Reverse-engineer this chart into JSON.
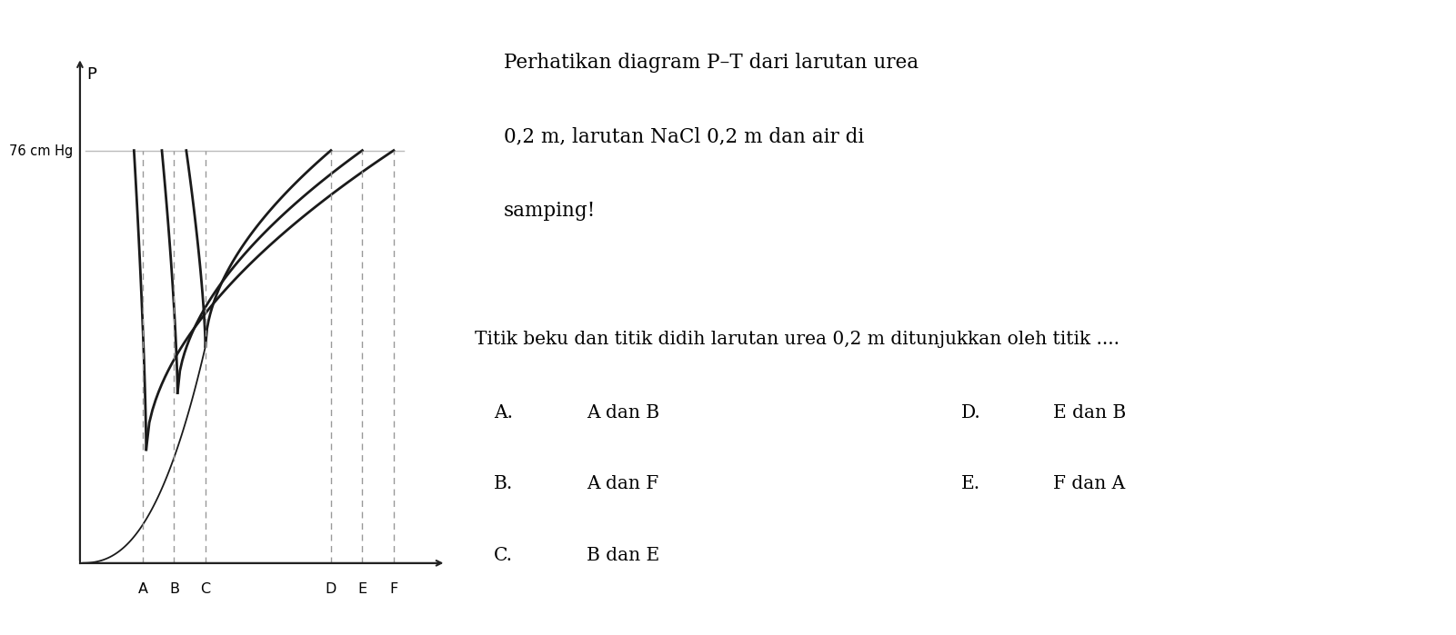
{
  "ylabel": "P",
  "pressure_label": "76 cm Hg",
  "x_labels": [
    "A",
    "B",
    "C",
    "D",
    "E",
    "F"
  ],
  "bg_color": "#ffffff",
  "line_color": "#1a1a1a",
  "dashed_color": "#999999",
  "hline_color": "#bbbbbb",
  "axis_color": "#222222",
  "title_line1": "Perhatikan diagram P–T dari larutan urea",
  "title_line2": "0,2 m, larutan NaCl 0,2 m dan air di",
  "title_line3": "samping!",
  "question": "Titik beku dan titik didih larutan urea 0,2 m ditunjukkan oleh titik ....",
  "opt_A": "A dan B",
  "opt_B": "A dan F",
  "opt_C": "B dan E",
  "opt_D": "E dan B",
  "opt_E": "F dan A",
  "T_A": 1.8,
  "T_B": 2.7,
  "T_C": 3.6,
  "T_D": 7.2,
  "T_E": 8.1,
  "T_F": 9.0,
  "P_76": 8.0,
  "P_tp_water": 4.2,
  "P_tp_urea": 3.3,
  "P_tp_nacl": 2.2,
  "xlim_min": -0.3,
  "xlim_max": 10.5,
  "ylim_min": -0.5,
  "ylim_max": 9.8
}
